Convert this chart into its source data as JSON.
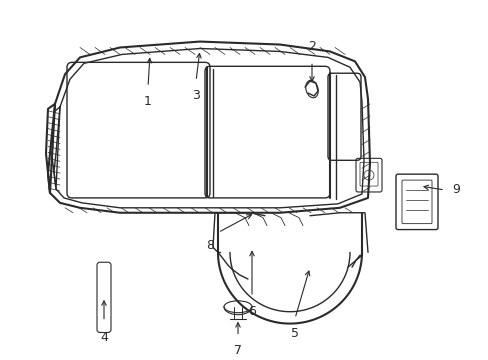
{
  "bg_color": "#ffffff",
  "line_color": "#2a2a2a",
  "figsize": [
    4.89,
    3.6
  ],
  "dpi": 100,
  "label_fontsize": 9
}
